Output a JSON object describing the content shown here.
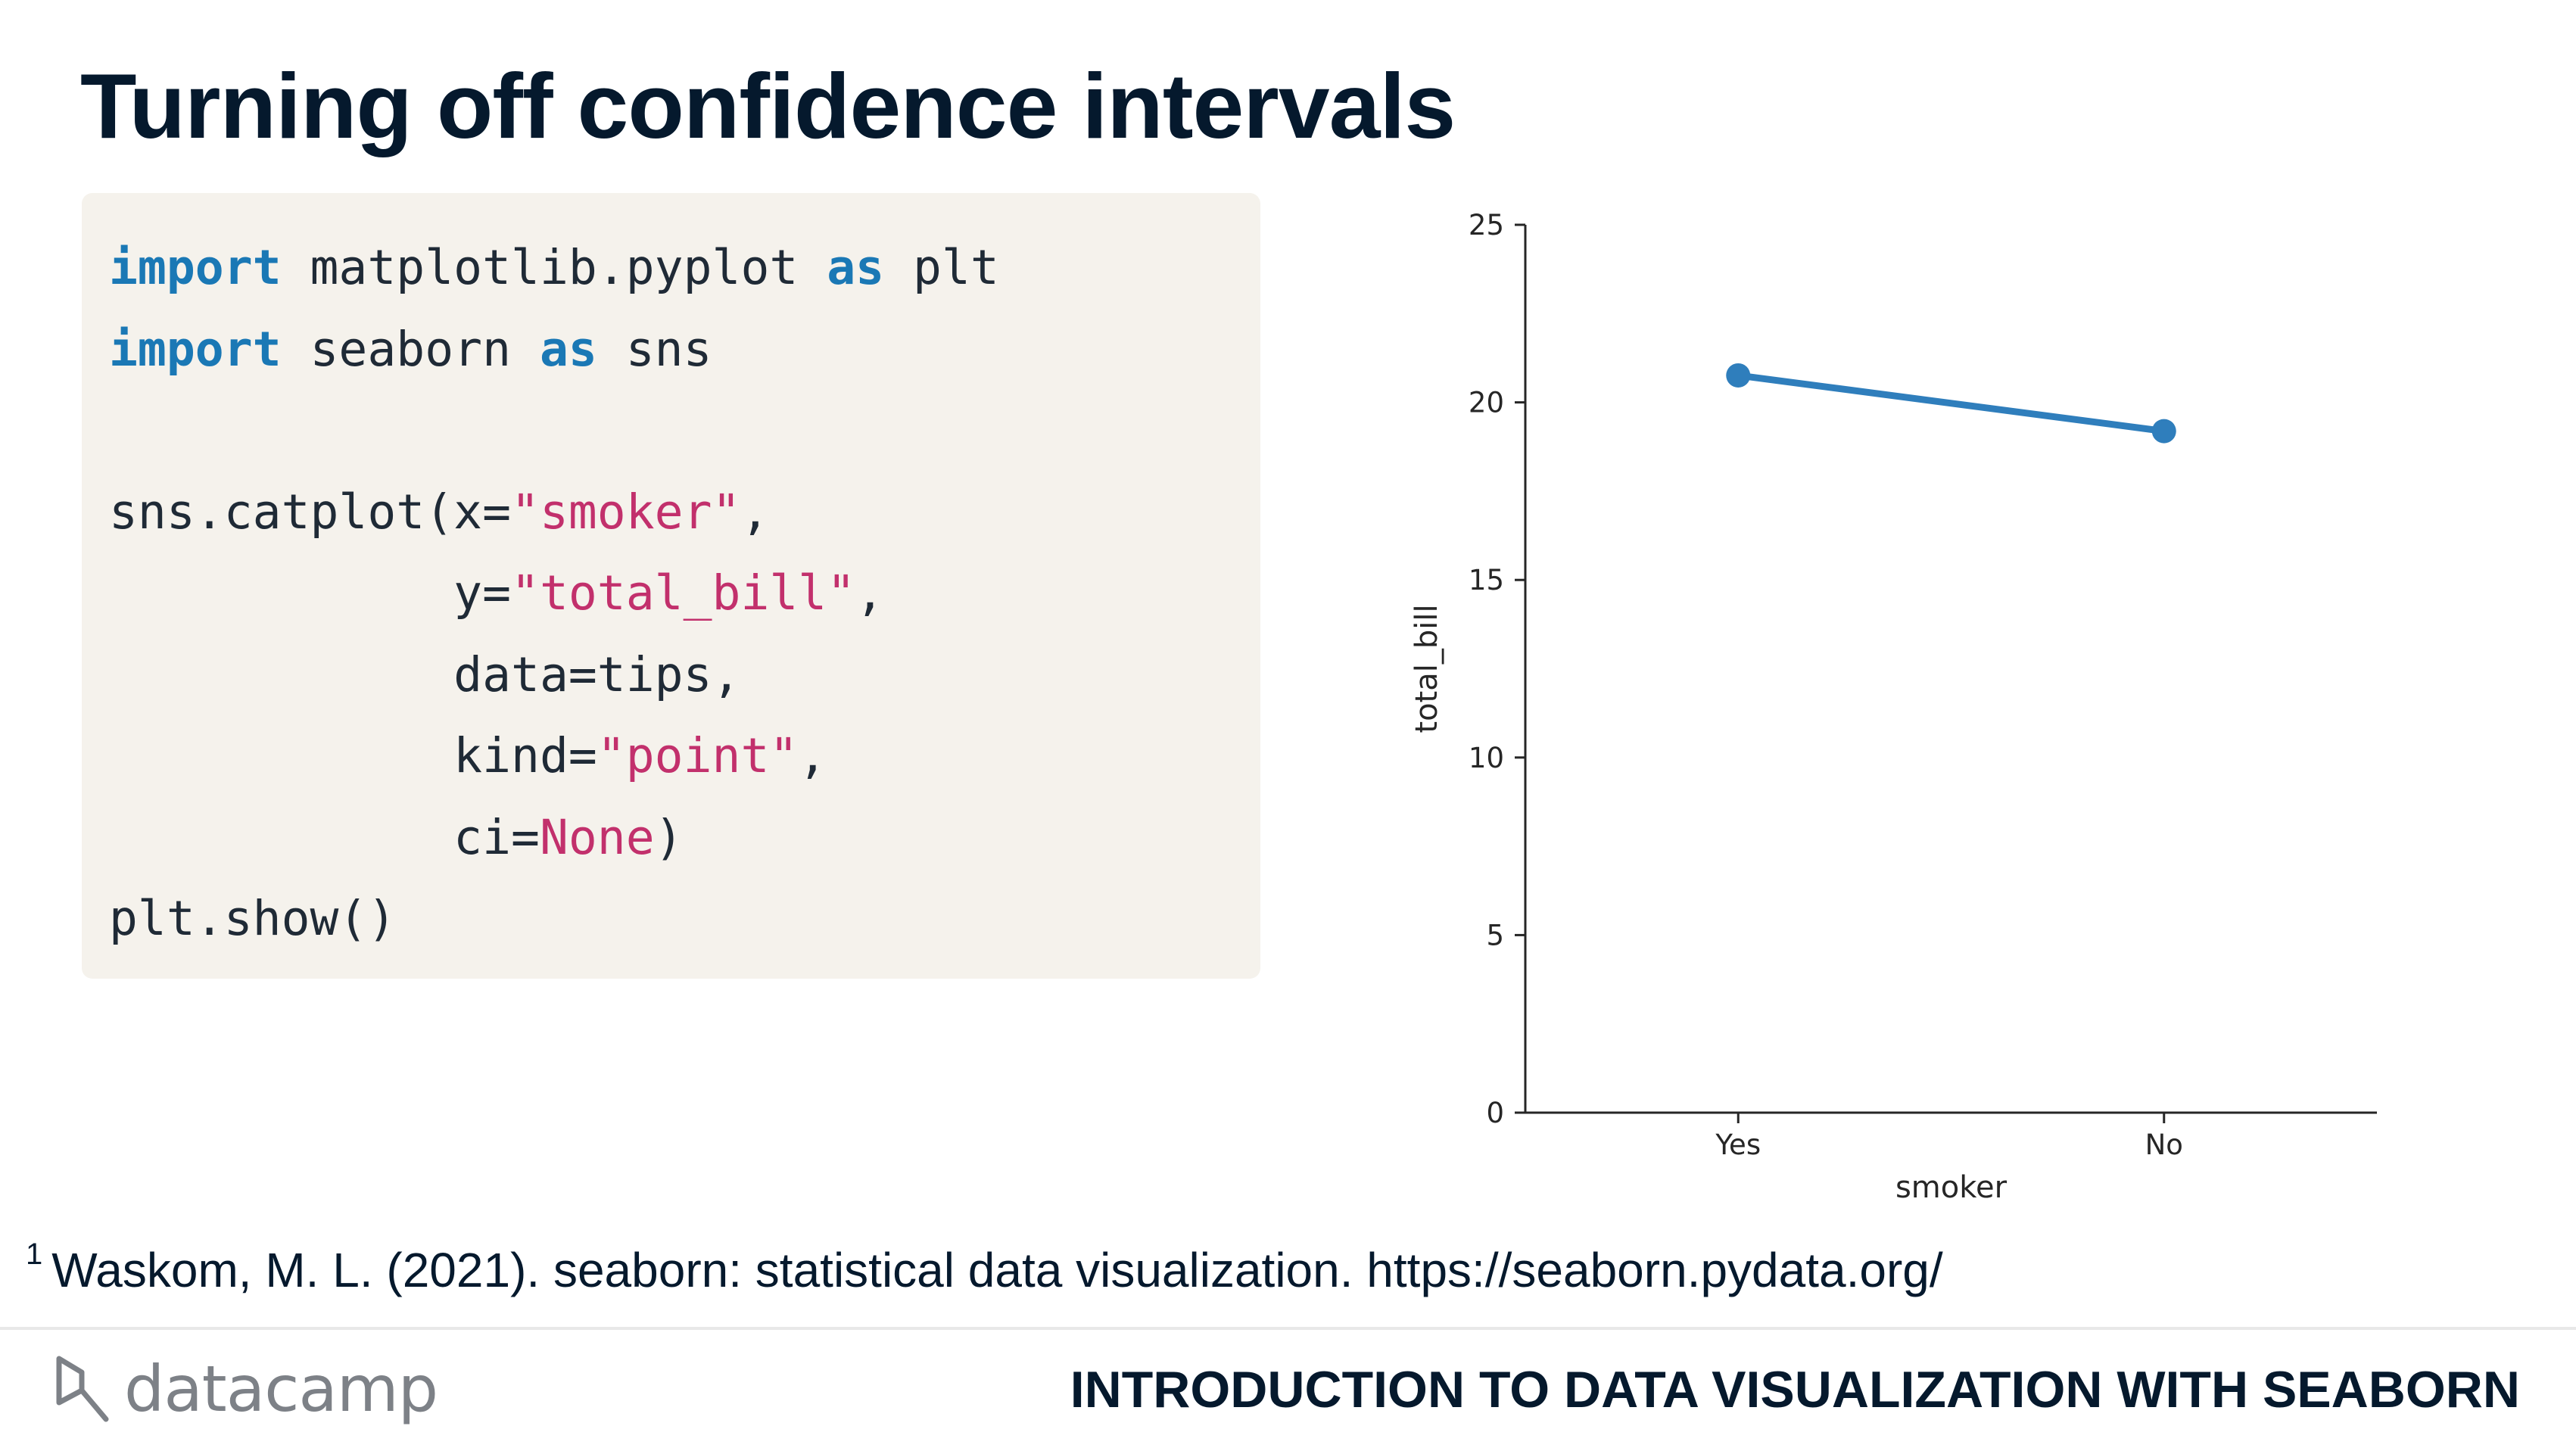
{
  "slide": {
    "title": "Turning off confidence intervals"
  },
  "code": {
    "lines": [
      [
        {
          "t": "import",
          "c": "kw"
        },
        {
          "t": " matplotlib.pyplot ",
          "c": ""
        },
        {
          "t": "as",
          "c": "kw"
        },
        {
          "t": " plt",
          "c": ""
        }
      ],
      [
        {
          "t": "import",
          "c": "kw"
        },
        {
          "t": " seaborn ",
          "c": ""
        },
        {
          "t": "as",
          "c": "kw"
        },
        {
          "t": " sns",
          "c": ""
        }
      ],
      [],
      [
        {
          "t": "sns.catplot(x=",
          "c": ""
        },
        {
          "t": "\"smoker\"",
          "c": "str"
        },
        {
          "t": ",",
          "c": ""
        }
      ],
      [
        {
          "t": "            y=",
          "c": ""
        },
        {
          "t": "\"total_bill\"",
          "c": "str"
        },
        {
          "t": ",",
          "c": ""
        }
      ],
      [
        {
          "t": "            data=tips,",
          "c": ""
        }
      ],
      [
        {
          "t": "            kind=",
          "c": ""
        },
        {
          "t": "\"point\"",
          "c": "str"
        },
        {
          "t": ",",
          "c": ""
        }
      ],
      [
        {
          "t": "            ci=",
          "c": ""
        },
        {
          "t": "None",
          "c": "str"
        },
        {
          "t": ")",
          "c": ""
        }
      ],
      [
        {
          "t": "plt.show()",
          "c": ""
        }
      ]
    ]
  },
  "chart_data": {
    "type": "line",
    "categories": [
      "Yes",
      "No"
    ],
    "series": [
      {
        "values": [
          20.76,
          19.19
        ],
        "color": "#2f7ebc"
      }
    ],
    "xlabel": "smoker",
    "ylabel": "total_bill",
    "ylim": [
      0,
      25
    ],
    "yticks": [
      "0",
      "5",
      "10",
      "15",
      "20",
      "25"
    ],
    "grid": false,
    "markers": "circle"
  },
  "footnote": {
    "marker": "1",
    "text": "Waskom, M. L. (2021). seaborn: statistical data visualization. https://seaborn.pydata.org/"
  },
  "footer": {
    "logo_text": "datacamp",
    "course": "INTRODUCTION TO DATA VISUALIZATION WITH SEABORN"
  },
  "colors": {
    "title": "#05192d",
    "code_bg": "#f5f2ec",
    "keyword": "#1a78b5",
    "string": "#c2306c",
    "series": "#2f7ebc"
  }
}
